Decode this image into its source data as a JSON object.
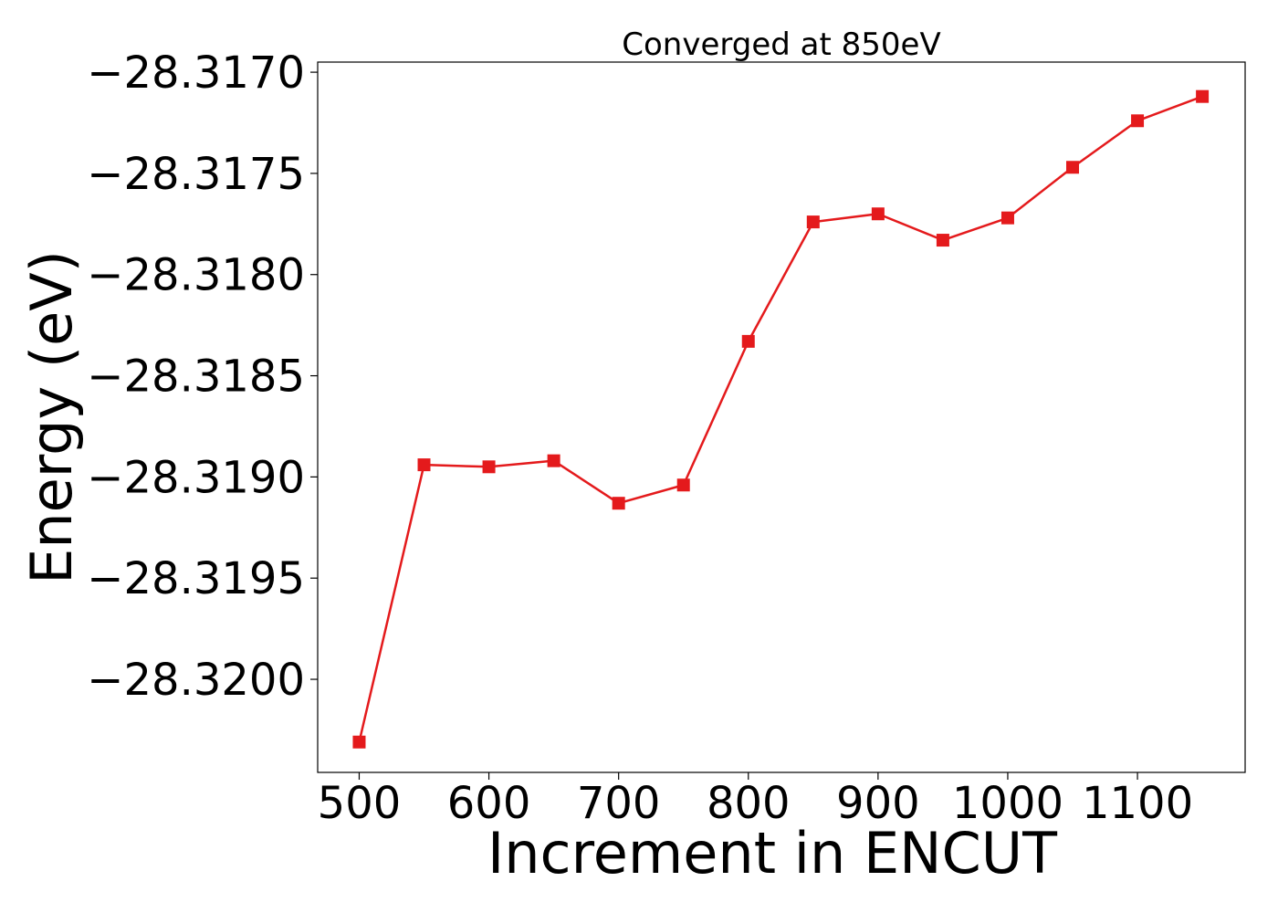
{
  "chart_data": {
    "type": "line",
    "title": "Converged at 850eV",
    "xlabel": "Increment in ENCUT",
    "ylabel": "Energy (eV)",
    "x": [
      500,
      550,
      600,
      650,
      700,
      750,
      800,
      850,
      900,
      950,
      1000,
      1050,
      1100,
      1150
    ],
    "series": [
      {
        "values": [
          -28.32031,
          -28.31894,
          -28.31895,
          -28.31892,
          -28.31913,
          -28.31904,
          -28.31833,
          -28.31774,
          -28.3177,
          -28.31783,
          -28.31772,
          -28.31747,
          -28.31724,
          -28.31712
        ],
        "color": "#e41a1c",
        "marker": "square"
      }
    ],
    "xlim": [
      468,
      1183
    ],
    "ylim": [
      -28.32046,
      -28.31695
    ],
    "xticks": [
      500,
      600,
      700,
      800,
      900,
      1000,
      1100
    ],
    "xtick_labels": [
      "500",
      "600",
      "700",
      "800",
      "900",
      "1000",
      "1100"
    ],
    "yticks": [
      -28.317,
      -28.3175,
      -28.318,
      -28.3185,
      -28.319,
      -28.3195,
      -28.32
    ],
    "ytick_labels": [
      "−28.3170",
      "−28.3175",
      "−28.3180",
      "−28.3185",
      "−28.3190",
      "−28.3195",
      "−28.3200"
    ],
    "grid": false,
    "legend": "none"
  }
}
